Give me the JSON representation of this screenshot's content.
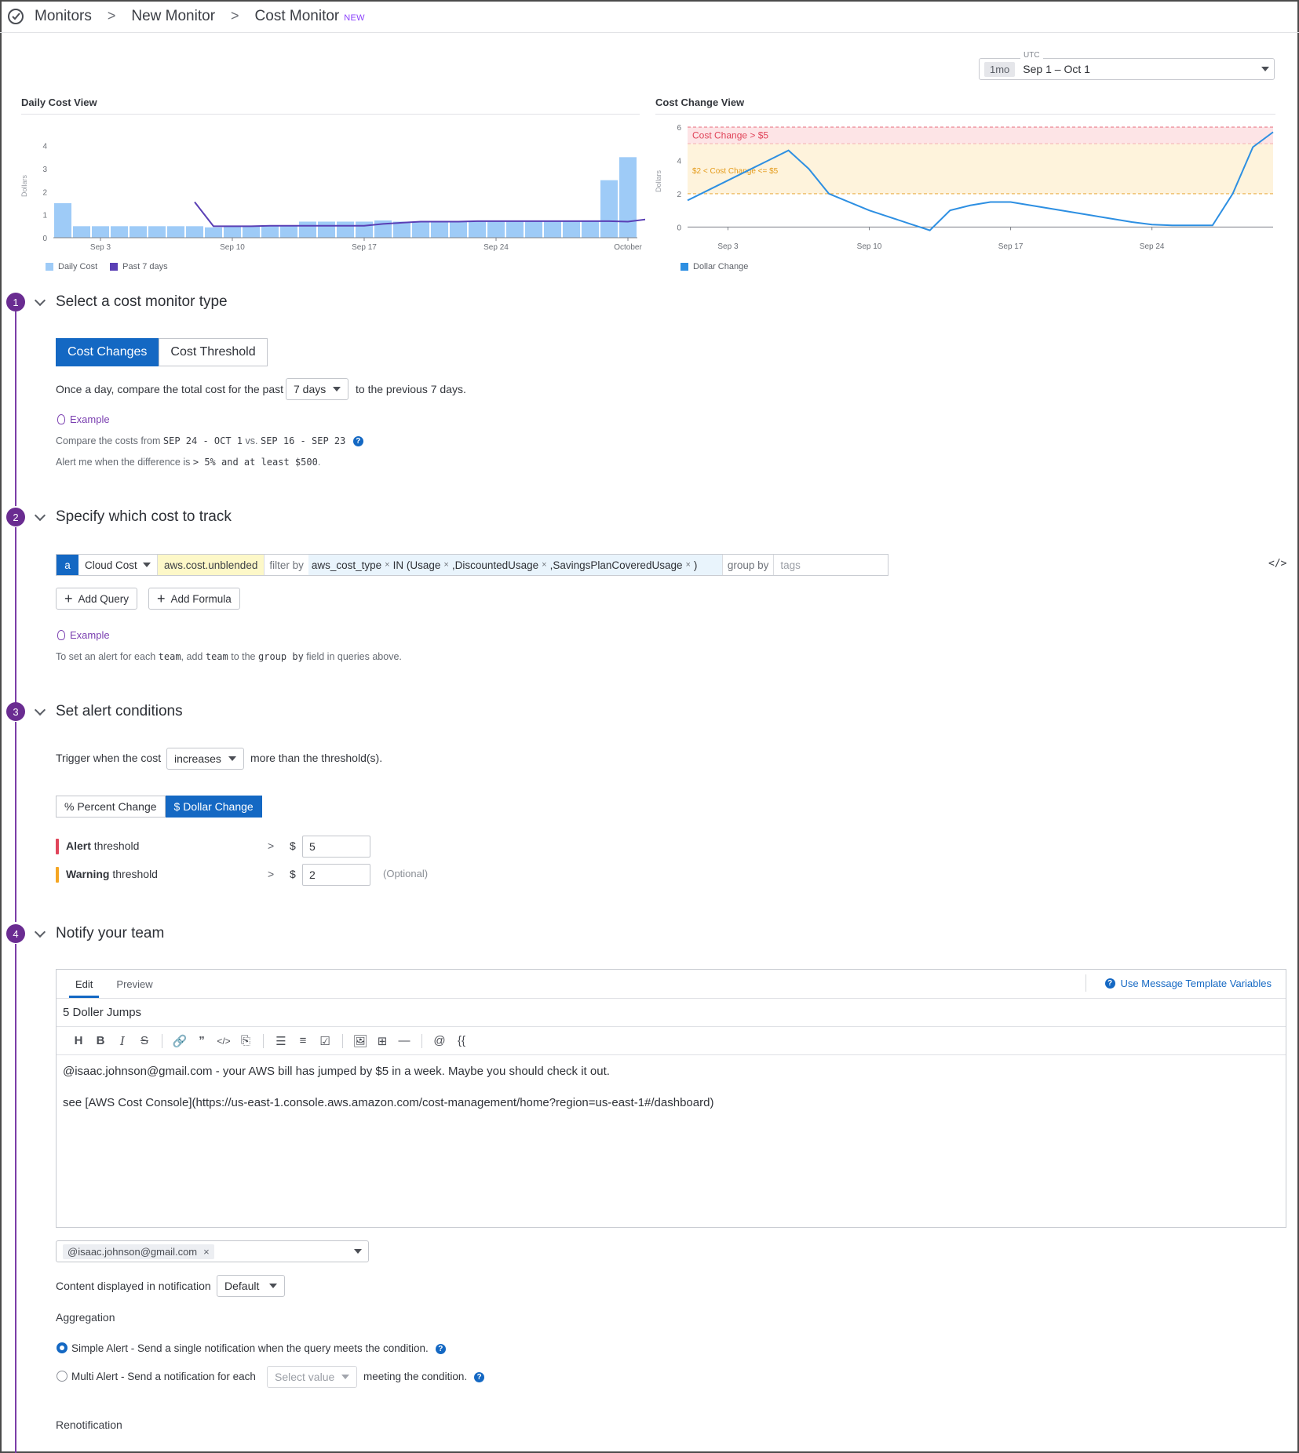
{
  "breadcrumb": {
    "items": [
      "Monitors",
      "New Monitor",
      "Cost Monitor"
    ],
    "new_badge": "NEW"
  },
  "timepicker": {
    "timezone": "UTC",
    "span": "1mo",
    "range": "Sep 1 – Oct 1"
  },
  "daily_cost_view": {
    "title": "Daily Cost View"
  },
  "cost_change_view": {
    "title": "Cost Change View"
  },
  "chart_data": [
    {
      "type": "bar",
      "title": "Daily Cost View",
      "ylabel": "Dollars",
      "ylim": [
        0,
        4.5
      ],
      "yticks": [
        0,
        1,
        2,
        3,
        4
      ],
      "xticks": [
        "Sep 3",
        "Sep 10",
        "Sep 17",
        "Sep 24",
        "October"
      ],
      "xtick_index": [
        2,
        9,
        16,
        23,
        30
      ],
      "series": [
        {
          "name": "Daily Cost",
          "kind": "bar",
          "color": "#9ecbf7",
          "values": [
            1.5,
            0.5,
            0.5,
            0.5,
            0.5,
            0.5,
            0.5,
            0.5,
            0.45,
            0.5,
            0.5,
            0.5,
            0.5,
            0.7,
            0.7,
            0.7,
            0.7,
            0.75,
            0.7,
            0.7,
            0.7,
            0.7,
            0.7,
            0.7,
            0.7,
            0.7,
            0.7,
            0.7,
            0.7,
            2.5,
            3.5
          ]
        },
        {
          "name": "Past 7 days",
          "kind": "line",
          "color": "#5a3fb5",
          "start_index": 7,
          "values": [
            1.55,
            0.5,
            0.5,
            0.5,
            0.52,
            0.52,
            0.52,
            0.52,
            0.52,
            0.52,
            0.6,
            0.65,
            0.7,
            0.7,
            0.7,
            0.72,
            0.72,
            0.72,
            0.72,
            0.72,
            0.72,
            0.72,
            0.72,
            0.7,
            0.8
          ]
        }
      ]
    },
    {
      "type": "line",
      "title": "Cost Change View",
      "ylabel": "Dollars",
      "ylim": [
        -0.5,
        6
      ],
      "yticks": [
        0,
        2,
        4,
        6
      ],
      "xticks": [
        "Sep 3",
        "Sep 10",
        "Sep 17",
        "Sep 24",
        "October"
      ],
      "xtick_index": [
        2,
        9,
        16,
        23,
        30
      ],
      "bands": [
        {
          "label": "Cost Change > $5",
          "from": 5,
          "to": 6,
          "color": "#fde4e6",
          "text_color": "#e0455a"
        },
        {
          "label": "$2 < Cost Change <= $5",
          "from": 2,
          "to": 5,
          "color": "#fef3dc",
          "text_color": "#e49b1b"
        }
      ],
      "series": [
        {
          "name": "Dollar Change",
          "color": "#2d8fe2",
          "values": [
            1.6,
            2.2,
            2.8,
            3.4,
            4.0,
            4.6,
            3.5,
            2.0,
            1.5,
            1.0,
            0.6,
            0.2,
            -0.2,
            1.0,
            1.3,
            1.5,
            1.5,
            1.3,
            1.1,
            0.9,
            0.7,
            0.5,
            0.3,
            0.15,
            0.1,
            0.1,
            0.1,
            2.0,
            4.8,
            5.7
          ]
        }
      ]
    }
  ],
  "legend_labels": {
    "daily_cost": "Daily Cost",
    "past_7_days": "Past 7 days",
    "dollar_change": "Dollar Change"
  },
  "colors": {
    "primary": "#1468c3",
    "step": "#6a2c91",
    "alert": "#e0455a",
    "warning": "#f5a623"
  },
  "step1": {
    "number": "1",
    "title": "Select a cost monitor type",
    "options": [
      "Cost Changes",
      "Cost Threshold"
    ],
    "sentence_before": "Once a day, compare the total cost for the past",
    "period": "7 days",
    "sentence_after": "to the previous 7 days.",
    "example_label": "Example",
    "compare_prefix": "Compare the costs from",
    "compare_range1": "SEP 24 - OCT 1",
    "compare_vs": "vs.",
    "compare_range2": "SEP 16 - SEP 23",
    "alert_prefix": "Alert me when the difference is",
    "alert_value": "> 5% and at least $500",
    "alert_suffix": "."
  },
  "step2": {
    "number": "2",
    "title": "Specify which cost to track",
    "query_letter": "a",
    "source": "Cloud Cost",
    "metric": "aws.cost.unblended",
    "filter_label": "filter by",
    "filter_key": "aws_cost_type",
    "filter_op": "IN (",
    "filter_values": [
      "Usage",
      "DiscountedUsage",
      "SavingsPlanCoveredUsage"
    ],
    "filter_close": ")",
    "group_label": "group by",
    "tags_placeholder": "tags",
    "add_query": "Add Query",
    "add_formula": "Add Formula",
    "example_label": "Example",
    "hint_1": "To set an alert for each",
    "hint_team": "team",
    "hint_2": ", add",
    "hint_team2": "team",
    "hint_3": "to the",
    "hint_group": "group by",
    "hint_4": "field in queries above.",
    "code_toggle": "</>"
  },
  "step3": {
    "number": "3",
    "title": "Set alert conditions",
    "trigger_before": "Trigger when the cost",
    "direction": "increases",
    "trigger_after": "more than the threshold(s).",
    "options": [
      "% Percent Change",
      "$ Dollar Change"
    ],
    "alert_label_bold": "Alert",
    "alert_label_rest": " threshold",
    "warning_label_bold": "Warning",
    "warning_label_rest": " threshold",
    "comparator": ">",
    "currency": "$",
    "alert_value": "5",
    "warning_value": "2",
    "optional": "(Optional)"
  },
  "step4": {
    "number": "4",
    "title": "Notify your team",
    "tabs": [
      "Edit",
      "Preview"
    ],
    "template_vars": "Use Message Template Variables",
    "subject": "5 Doller Jumps",
    "toolbar": [
      "H",
      "B",
      "I",
      "S",
      "🔗",
      "”",
      "</>",
      "⎘",
      "☰",
      "≡",
      "☑",
      "🖼",
      "⊞",
      "—",
      "@",
      "{{"
    ],
    "body_line1": "@isaac.johnson@gmail.com - your AWS bill has jumped by $5 in a week.  Maybe you should check it out.",
    "body_line2": "see [AWS Cost Console](https://us-east-1.console.aws.amazon.com/cost-management/home?region=us-east-1#/dashboard)",
    "recipient": "@isaac.johnson@gmail.com",
    "content_label": "Content displayed in notification",
    "content_value": "Default",
    "aggregation_label": "Aggregation",
    "simple_alert": "Simple Alert - Send a single notification when the query meets the condition.",
    "multi_alert_before": "Multi Alert - Send a notification for each",
    "multi_alert_placeholder": "Select value",
    "multi_alert_after": "meeting the condition.",
    "renotification_label": "Renotification"
  }
}
